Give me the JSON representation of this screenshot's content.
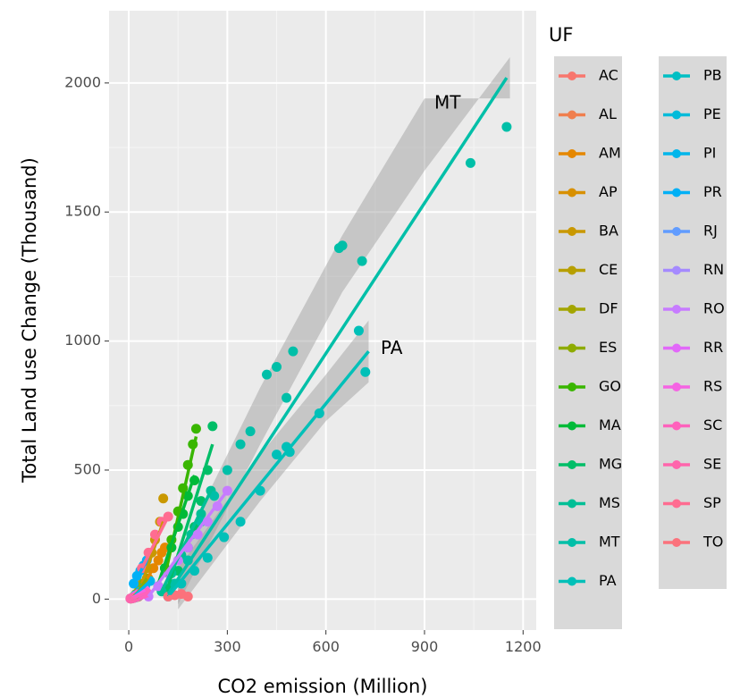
{
  "chart_data": {
    "type": "scatter",
    "xlabel": "CO2 emission (Million)",
    "ylabel": "Total Land use Change (Thousand)",
    "xlim": [
      -60,
      1240
    ],
    "ylim": [
      -120,
      2280
    ],
    "x_ticks": [
      0,
      300,
      600,
      900,
      1200
    ],
    "y_ticks": [
      0,
      500,
      1000,
      1500,
      2000
    ],
    "x_tick_labels": [
      "0",
      "300",
      "600",
      "900",
      "1200"
    ],
    "y_tick_labels": [
      "0",
      "500",
      "1000",
      "1500",
      "2000"
    ],
    "grid": true,
    "legend": {
      "title": "UF",
      "placement": "right",
      "columns": 2,
      "entries": [
        "AC",
        "AL",
        "AM",
        "AP",
        "BA",
        "CE",
        "DF",
        "ES",
        "GO",
        "MA",
        "MG",
        "MS",
        "MT",
        "PA",
        "PB",
        "PE",
        "PI",
        "PR",
        "RJ",
        "RN",
        "RO",
        "RR",
        "RS",
        "SC",
        "SE",
        "SP",
        "TO"
      ]
    },
    "annotations": [
      {
        "text": "MT",
        "x": 970,
        "y": 1920
      },
      {
        "text": "PA",
        "x": 800,
        "y": 970
      }
    ],
    "series": [
      {
        "name": "AC",
        "color": "#F8766D",
        "x": [
          10,
          18,
          25,
          30,
          35,
          42
        ],
        "y": [
          5,
          8,
          12,
          18,
          20,
          25
        ],
        "fit": [
          [
            10,
            5
          ],
          [
            42,
            25
          ]
        ]
      },
      {
        "name": "AL",
        "color": "#F07F4E",
        "x": [
          8,
          14,
          20,
          26,
          30
        ],
        "y": [
          2,
          4,
          6,
          8,
          10
        ],
        "fit": [
          [
            8,
            2
          ],
          [
            30,
            10
          ]
        ]
      },
      {
        "name": "AM",
        "color": "#E58700",
        "x": [
          30,
          45,
          60,
          75,
          90,
          100,
          110
        ],
        "y": [
          20,
          50,
          80,
          120,
          150,
          180,
          200
        ],
        "fit": [
          [
            30,
            20
          ],
          [
            110,
            200
          ]
        ]
      },
      {
        "name": "AP",
        "color": "#D89000",
        "x": [
          5,
          10,
          15,
          20
        ],
        "y": [
          2,
          4,
          6,
          8
        ],
        "fit": [
          [
            5,
            2
          ],
          [
            20,
            8
          ]
        ]
      },
      {
        "name": "BA",
        "color": "#C99800",
        "x": [
          40,
          55,
          70,
          80,
          95,
          105
        ],
        "y": [
          60,
          120,
          180,
          230,
          300,
          390
        ],
        "fit": [
          [
            40,
            60
          ],
          [
            105,
            300
          ]
        ]
      },
      {
        "name": "CE",
        "color": "#B79F00",
        "x": [
          15,
          22,
          30,
          38,
          45
        ],
        "y": [
          10,
          20,
          30,
          40,
          50
        ],
        "fit": [
          [
            15,
            10
          ],
          [
            45,
            50
          ]
        ]
      },
      {
        "name": "DF",
        "color": "#A3A500",
        "x": [
          10,
          14,
          18,
          22
        ],
        "y": [
          5,
          8,
          10,
          12
        ],
        "fit": [
          [
            10,
            5
          ],
          [
            22,
            12
          ]
        ]
      },
      {
        "name": "ES",
        "color": "#8EAB00",
        "x": [
          25,
          35,
          45,
          55
        ],
        "y": [
          20,
          40,
          60,
          80
        ],
        "fit": [
          [
            25,
            20
          ],
          [
            55,
            80
          ]
        ]
      },
      {
        "name": "GO",
        "color": "#39B600",
        "x": [
          110,
          130,
          150,
          165,
          180,
          195,
          205
        ],
        "y": [
          120,
          230,
          340,
          430,
          520,
          600,
          660
        ],
        "fit": [
          [
            110,
            90
          ],
          [
            205,
            630
          ]
        ]
      },
      {
        "name": "MA",
        "color": "#00BA38",
        "x": [
          90,
          110,
          130,
          150,
          165,
          180,
          200
        ],
        "y": [
          50,
          120,
          200,
          280,
          330,
          400,
          460
        ],
        "fit": [
          [
            90,
            60
          ],
          [
            200,
            480
          ]
        ]
      },
      {
        "name": "MG",
        "color": "#00BE67",
        "x": [
          120,
          150,
          180,
          200,
          220,
          240,
          255
        ],
        "y": [
          40,
          110,
          200,
          280,
          380,
          500,
          670
        ],
        "fit": [
          [
            120,
            50
          ],
          [
            255,
            600
          ]
        ]
      },
      {
        "name": "MS",
        "color": "#00BF96",
        "x": [
          100,
          130,
          160,
          190,
          220,
          250
        ],
        "y": [
          30,
          100,
          170,
          250,
          330,
          420
        ],
        "fit": [
          [
            100,
            30
          ],
          [
            250,
            420
          ]
        ]
      },
      {
        "name": "MT",
        "color": "#00BFA8",
        "x": [
          140,
          180,
          220,
          260,
          300,
          340,
          370,
          420,
          450,
          480,
          500,
          640,
          650,
          710,
          1040,
          1150
        ],
        "y": [
          60,
          150,
          300,
          400,
          500,
          600,
          650,
          870,
          900,
          780,
          960,
          1360,
          1370,
          1310,
          1690,
          1830
        ],
        "fit": [
          [
            120,
            20
          ],
          [
            1150,
            2020
          ]
        ]
      },
      {
        "name": "PA",
        "color": "#00C0B8",
        "x": [
          120,
          160,
          200,
          240,
          290,
          340,
          400,
          450,
          480,
          490,
          580,
          700,
          720
        ],
        "y": [
          10,
          60,
          110,
          160,
          240,
          300,
          420,
          560,
          590,
          570,
          720,
          1040,
          880
        ],
        "fit": [
          [
            120,
            10
          ],
          [
            730,
            960
          ]
        ]
      },
      {
        "name": "PB",
        "color": "#00BFC4",
        "x": [
          12,
          18,
          24,
          30
        ],
        "y": [
          4,
          6,
          9,
          12
        ],
        "fit": [
          [
            12,
            4
          ],
          [
            30,
            12
          ]
        ]
      },
      {
        "name": "PE",
        "color": "#00BBDA",
        "x": [
          20,
          28,
          36,
          44
        ],
        "y": [
          8,
          12,
          16,
          20
        ],
        "fit": [
          [
            20,
            8
          ],
          [
            44,
            20
          ]
        ]
      },
      {
        "name": "PI",
        "color": "#00B6EB",
        "x": [
          20,
          35,
          50,
          65
        ],
        "y": [
          15,
          30,
          50,
          70
        ],
        "fit": [
          [
            20,
            15
          ],
          [
            65,
            70
          ]
        ]
      },
      {
        "name": "PR",
        "color": "#00B0F6",
        "x": [
          15,
          25,
          35,
          45,
          55
        ],
        "y": [
          60,
          90,
          110,
          130,
          150
        ],
        "fit": [
          [
            15,
            60
          ],
          [
            55,
            150
          ]
        ]
      },
      {
        "name": "RJ",
        "color": "#619CFF",
        "x": [
          5,
          10,
          15
        ],
        "y": [
          2,
          4,
          6
        ],
        "fit": [
          [
            5,
            2
          ],
          [
            15,
            6
          ]
        ]
      },
      {
        "name": "RN",
        "color": "#A58AFF",
        "x": [
          10,
          16,
          22
        ],
        "y": [
          3,
          5,
          8
        ],
        "fit": [
          [
            10,
            3
          ],
          [
            22,
            8
          ]
        ]
      },
      {
        "name": "RO",
        "color": "#C77CFF",
        "x": [
          60,
          90,
          120,
          150,
          180,
          210,
          240,
          270,
          300
        ],
        "y": [
          10,
          50,
          100,
          150,
          200,
          250,
          300,
          360,
          420
        ],
        "fit": [
          [
            60,
            10
          ],
          [
            300,
            420
          ]
        ]
      },
      {
        "name": "RR",
        "color": "#E268F9",
        "x": [
          10,
          20,
          30,
          40
        ],
        "y": [
          5,
          12,
          20,
          25
        ],
        "fit": [
          [
            10,
            5
          ],
          [
            40,
            25
          ]
        ]
      },
      {
        "name": "RS",
        "color": "#F564E3",
        "x": [
          20,
          30,
          40,
          50
        ],
        "y": [
          10,
          20,
          25,
          35
        ],
        "fit": [
          [
            20,
            10
          ],
          [
            50,
            35
          ]
        ]
      },
      {
        "name": "SC",
        "color": "#FF62BC",
        "x": [
          15,
          25,
          35,
          45,
          55
        ],
        "y": [
          5,
          10,
          15,
          20,
          25
        ],
        "fit": [
          [
            15,
            5
          ],
          [
            55,
            25
          ]
        ]
      },
      {
        "name": "SE",
        "color": "#FF65AC",
        "x": [
          5,
          10,
          15
        ],
        "y": [
          2,
          3,
          5
        ],
        "fit": [
          [
            5,
            2
          ],
          [
            15,
            5
          ]
        ]
      },
      {
        "name": "SP",
        "color": "#FF6C91",
        "x": [
          40,
          60,
          80,
          100,
          120
        ],
        "y": [
          120,
          180,
          250,
          300,
          320
        ],
        "fit": [
          [
            40,
            120
          ],
          [
            120,
            320
          ]
        ]
      },
      {
        "name": "TO",
        "color": "#FB727C",
        "x": [
          120,
          140,
          160,
          180
        ],
        "y": [
          10,
          15,
          20,
          10
        ],
        "fit": [
          [
            120,
            10
          ],
          [
            180,
            10
          ]
        ]
      }
    ],
    "bands": [
      {
        "series": "MT",
        "color": "#999999",
        "lo": [
          [
            150,
            40
          ],
          [
            400,
            660
          ],
          [
            650,
            1250
          ],
          [
            900,
            1720
          ],
          [
            1160,
            2160
          ]
        ],
        "hi": [
          [
            150,
            110
          ],
          [
            400,
            760
          ],
          [
            650,
            1350
          ],
          [
            900,
            1880
          ],
          [
            1160,
            1880
          ]
        ]
      },
      {
        "series": "PA",
        "color": "#999999",
        "lo": [
          [
            150,
            20
          ],
          [
            400,
            440
          ],
          [
            600,
            750
          ],
          [
            730,
            900
          ]
        ],
        "hi": [
          [
            150,
            60
          ],
          [
            400,
            500
          ],
          [
            600,
            810
          ],
          [
            730,
            1020
          ]
        ]
      }
    ]
  }
}
